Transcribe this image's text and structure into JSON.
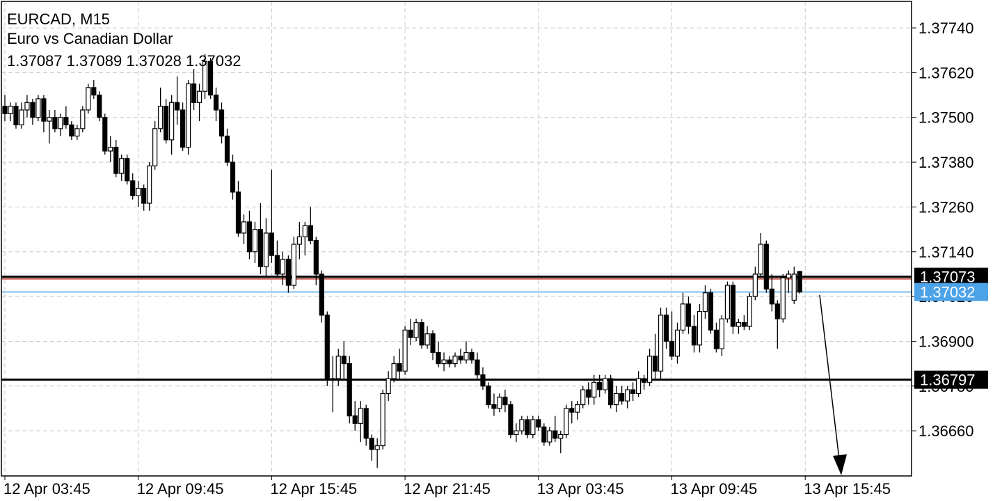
{
  "chart_data": {
    "type": "candlestick",
    "title": "EURCAD, M15",
    "subtitle": "Euro vs Canadian Dollar",
    "ohlc": [
      [
        1.3753,
        1.3756,
        1.3749,
        1.3751
      ],
      [
        1.3751,
        1.3754,
        1.3749,
        1.3753
      ],
      [
        1.3753,
        1.3754,
        1.3747,
        1.3748
      ],
      [
        1.3748,
        1.3754,
        1.3747,
        1.3752
      ],
      [
        1.3752,
        1.3756,
        1.375,
        1.3754
      ],
      [
        1.3754,
        1.3755,
        1.3748,
        1.375
      ],
      [
        1.375,
        1.3756,
        1.3749,
        1.3755
      ],
      [
        1.3755,
        1.3756,
        1.3746,
        1.3749
      ],
      [
        1.3749,
        1.3752,
        1.3743,
        1.375
      ],
      [
        1.375,
        1.3752,
        1.3746,
        1.3747
      ],
      [
        1.3747,
        1.3751,
        1.3745,
        1.375
      ],
      [
        1.375,
        1.3753,
        1.3747,
        1.3748
      ],
      [
        1.3748,
        1.3749,
        1.3744,
        1.3745
      ],
      [
        1.3745,
        1.3748,
        1.3744,
        1.3747
      ],
      [
        1.3747,
        1.3753,
        1.3746,
        1.3752
      ],
      [
        1.3752,
        1.3759,
        1.3751,
        1.3758
      ],
      [
        1.3758,
        1.376,
        1.3755,
        1.3756
      ],
      [
        1.3756,
        1.3757,
        1.3749,
        1.375
      ],
      [
        1.375,
        1.3751,
        1.374,
        1.3741
      ],
      [
        1.3741,
        1.3745,
        1.3738,
        1.3742
      ],
      [
        1.3742,
        1.3744,
        1.3734,
        1.3735
      ],
      [
        1.3735,
        1.374,
        1.3733,
        1.3739
      ],
      [
        1.3739,
        1.374,
        1.3732,
        1.3733
      ],
      [
        1.3733,
        1.3735,
        1.3728,
        1.3729
      ],
      [
        1.3729,
        1.3733,
        1.3726,
        1.3731
      ],
      [
        1.3731,
        1.3732,
        1.3725,
        1.3727
      ],
      [
        1.3727,
        1.3738,
        1.3725,
        1.3737
      ],
      [
        1.3737,
        1.3749,
        1.3736,
        1.3747
      ],
      [
        1.3747,
        1.3758,
        1.3746,
        1.3753
      ],
      [
        1.3753,
        1.3755,
        1.3743,
        1.3744
      ],
      [
        1.3744,
        1.3756,
        1.374,
        1.3754
      ],
      [
        1.3754,
        1.3761,
        1.3748,
        1.3752
      ],
      [
        1.3752,
        1.3754,
        1.3741,
        1.3742
      ],
      [
        1.3742,
        1.376,
        1.374,
        1.3759
      ],
      [
        1.3759,
        1.3763,
        1.3752,
        1.3754
      ],
      [
        1.3754,
        1.3759,
        1.3749,
        1.3757
      ],
      [
        1.3757,
        1.3767,
        1.3755,
        1.3765
      ],
      [
        1.3765,
        1.3766,
        1.3755,
        1.3756
      ],
      [
        1.3756,
        1.3758,
        1.3749,
        1.3752
      ],
      [
        1.3752,
        1.3754,
        1.3743,
        1.3745
      ],
      [
        1.3745,
        1.3747,
        1.3737,
        1.3738
      ],
      [
        1.3738,
        1.374,
        1.3728,
        1.373
      ],
      [
        1.373,
        1.3733,
        1.3718,
        1.3719
      ],
      [
        1.3719,
        1.3724,
        1.3716,
        1.3722
      ],
      [
        1.3722,
        1.3725,
        1.3712,
        1.3714
      ],
      [
        1.3714,
        1.3722,
        1.3711,
        1.372
      ],
      [
        1.372,
        1.3727,
        1.3708,
        1.371
      ],
      [
        1.371,
        1.3723,
        1.3707,
        1.3719
      ],
      [
        1.3719,
        1.3736,
        1.3711,
        1.3713
      ],
      [
        1.3713,
        1.3717,
        1.3707,
        1.3708
      ],
      [
        1.3708,
        1.3714,
        1.3705,
        1.3712
      ],
      [
        1.3712,
        1.3713,
        1.3703,
        1.3705
      ],
      [
        1.3705,
        1.3718,
        1.3704,
        1.3716
      ],
      [
        1.3716,
        1.3722,
        1.3712,
        1.3718
      ],
      [
        1.3718,
        1.3722,
        1.3713,
        1.3721
      ],
      [
        1.3721,
        1.3726,
        1.3716,
        1.3717
      ],
      [
        1.3717,
        1.3718,
        1.3705,
        1.3708
      ],
      [
        1.3708,
        1.3709,
        1.3695,
        1.3697
      ],
      [
        1.3697,
        1.3698,
        1.3678,
        1.368
      ],
      [
        1.368,
        1.3686,
        1.3671,
        1.368
      ],
      [
        1.368,
        1.3688,
        1.3678,
        1.3686
      ],
      [
        1.3686,
        1.369,
        1.368,
        1.3684
      ],
      [
        1.3684,
        1.3686,
        1.3668,
        1.367
      ],
      [
        1.367,
        1.3674,
        1.3666,
        1.3668
      ],
      [
        1.3668,
        1.3674,
        1.3663,
        1.3672
      ],
      [
        1.3672,
        1.3673,
        1.3662,
        1.3664
      ],
      [
        1.3664,
        1.3665,
        1.3658,
        1.3661
      ],
      [
        1.3661,
        1.3664,
        1.3656,
        1.3662
      ],
      [
        1.3662,
        1.3677,
        1.3661,
        1.3676
      ],
      [
        1.3676,
        1.3682,
        1.3674,
        1.368
      ],
      [
        1.368,
        1.3686,
        1.3679,
        1.3684
      ],
      [
        1.3684,
        1.3688,
        1.368,
        1.3682
      ],
      [
        1.3682,
        1.3694,
        1.3681,
        1.3693
      ],
      [
        1.3693,
        1.3696,
        1.3689,
        1.3691
      ],
      [
        1.3691,
        1.3696,
        1.369,
        1.3695
      ],
      [
        1.3695,
        1.3696,
        1.3688,
        1.3689
      ],
      [
        1.3689,
        1.3694,
        1.3688,
        1.3692
      ],
      [
        1.3692,
        1.3693,
        1.3685,
        1.3687
      ],
      [
        1.3687,
        1.369,
        1.3683,
        1.3684
      ],
      [
        1.3684,
        1.3687,
        1.3682,
        1.3685
      ],
      [
        1.3685,
        1.3686,
        1.3683,
        1.3684
      ],
      [
        1.3684,
        1.3687,
        1.3683,
        1.3686
      ],
      [
        1.3686,
        1.3688,
        1.3684,
        1.3685
      ],
      [
        1.3685,
        1.369,
        1.3684,
        1.3687
      ],
      [
        1.3687,
        1.3688,
        1.3684,
        1.3685
      ],
      [
        1.3685,
        1.3687,
        1.368,
        1.3681
      ],
      [
        1.3681,
        1.3683,
        1.3677,
        1.3678
      ],
      [
        1.3678,
        1.3679,
        1.3672,
        1.3673
      ],
      [
        1.3673,
        1.3676,
        1.367,
        1.3672
      ],
      [
        1.3672,
        1.3676,
        1.3671,
        1.3675
      ],
      [
        1.3675,
        1.3677,
        1.3671,
        1.3673
      ],
      [
        1.3673,
        1.3674,
        1.3664,
        1.3665
      ],
      [
        1.3665,
        1.3668,
        1.3663,
        1.3666
      ],
      [
        1.3666,
        1.367,
        1.3665,
        1.3669
      ],
      [
        1.3669,
        1.367,
        1.3664,
        1.3665
      ],
      [
        1.3665,
        1.367,
        1.3664,
        1.3669
      ],
      [
        1.3669,
        1.367,
        1.3666,
        1.3667
      ],
      [
        1.3667,
        1.3668,
        1.3662,
        1.3663
      ],
      [
        1.3663,
        1.3667,
        1.3662,
        1.3666
      ],
      [
        1.3666,
        1.367,
        1.3663,
        1.3664
      ],
      [
        1.3664,
        1.3666,
        1.366,
        1.3665
      ],
      [
        1.3665,
        1.3673,
        1.3664,
        1.3672
      ],
      [
        1.3672,
        1.3674,
        1.3668,
        1.3671
      ],
      [
        1.3671,
        1.3674,
        1.3669,
        1.3673
      ],
      [
        1.3673,
        1.3678,
        1.3672,
        1.3677
      ],
      [
        1.3677,
        1.3679,
        1.3673,
        1.3675
      ],
      [
        1.3675,
        1.3681,
        1.3673,
        1.3679
      ],
      [
        1.3679,
        1.3681,
        1.3675,
        1.3677
      ],
      [
        1.3677,
        1.3681,
        1.3676,
        1.368
      ],
      [
        1.368,
        1.3681,
        1.3672,
        1.3673
      ],
      [
        1.3673,
        1.3678,
        1.3671,
        1.3676
      ],
      [
        1.3676,
        1.3678,
        1.3673,
        1.3674
      ],
      [
        1.3674,
        1.3678,
        1.3672,
        1.3677
      ],
      [
        1.3677,
        1.3679,
        1.3674,
        1.3676
      ],
      [
        1.3676,
        1.3682,
        1.3675,
        1.368
      ],
      [
        1.368,
        1.3681,
        1.3677,
        1.3679
      ],
      [
        1.3679,
        1.3688,
        1.3678,
        1.3686
      ],
      [
        1.3686,
        1.3692,
        1.368,
        1.3682
      ],
      [
        1.3682,
        1.3699,
        1.368,
        1.3697
      ],
      [
        1.3697,
        1.3699,
        1.3688,
        1.369
      ],
      [
        1.369,
        1.3698,
        1.3685,
        1.3686
      ],
      [
        1.3686,
        1.3695,
        1.3684,
        1.3693
      ],
      [
        1.3693,
        1.3703,
        1.3692,
        1.37
      ],
      [
        1.37,
        1.3702,
        1.3692,
        1.3694
      ],
      [
        1.3694,
        1.3697,
        1.3687,
        1.3689
      ],
      [
        1.3689,
        1.37,
        1.3687,
        1.3698
      ],
      [
        1.3698,
        1.3705,
        1.3696,
        1.3703
      ],
      [
        1.3703,
        1.3704,
        1.3692,
        1.3693
      ],
      [
        1.3693,
        1.3695,
        1.3687,
        1.3688
      ],
      [
        1.3688,
        1.3697,
        1.3686,
        1.3696
      ],
      [
        1.3696,
        1.3706,
        1.3695,
        1.3705
      ],
      [
        1.3705,
        1.3706,
        1.3692,
        1.3694
      ],
      [
        1.3694,
        1.3696,
        1.3692,
        1.3695
      ],
      [
        1.3695,
        1.3697,
        1.3693,
        1.3694
      ],
      [
        1.3694,
        1.3703,
        1.3693,
        1.3702
      ],
      [
        1.3702,
        1.371,
        1.3701,
        1.3708
      ],
      [
        1.3708,
        1.3719,
        1.3707,
        1.3716
      ],
      [
        1.3716,
        1.3717,
        1.3703,
        1.3704
      ],
      [
        1.3704,
        1.3708,
        1.3698,
        1.37
      ],
      [
        1.37,
        1.3701,
        1.3688,
        1.3696
      ],
      [
        1.3696,
        1.3708,
        1.3695,
        1.3707
      ],
      [
        1.3707,
        1.3709,
        1.3703,
        1.3708
      ],
      [
        1.3701,
        1.371,
        1.37,
        1.3708
      ],
      [
        1.37087,
        1.37089,
        1.37028,
        1.37032
      ]
    ],
    "up_color": "#ffffff",
    "down_color": "#000000",
    "levels": [
      {
        "value": 1.37073,
        "color": "#000000",
        "tag": true
      },
      {
        "value": 1.37067,
        "color": "#c0392b",
        "tag": false
      },
      {
        "value": 1.37032,
        "color": "#4da3e8",
        "tag": true
      },
      {
        "value": 1.36797,
        "color": "#000000",
        "tag": true
      }
    ],
    "xlim": [
      -0.625,
      163.125
    ],
    "xticks": [
      {
        "value": 0,
        "label": "12 Apr 03:45"
      },
      {
        "value": 24,
        "label": "12 Apr 09:45"
      },
      {
        "value": 48,
        "label": "12 Apr 15:45"
      },
      {
        "value": 72,
        "label": "12 Apr 21:45"
      },
      {
        "value": 96,
        "label": "13 Apr 03:45"
      },
      {
        "value": 120,
        "label": "13 Apr 09:45"
      },
      {
        "value": 144,
        "label": "13 Apr 15:45"
      }
    ],
    "ylim": [
      1.36539,
      1.37811
    ],
    "yticks": [
      {
        "value": 1.3774,
        "label": "1.37740"
      },
      {
        "value": 1.3762,
        "label": "1.37620"
      },
      {
        "value": 1.375,
        "label": "1.37500"
      },
      {
        "value": 1.3738,
        "label": "1.37380"
      },
      {
        "value": 1.3726,
        "label": "1.37260"
      },
      {
        "value": 1.3714,
        "label": "1.37140"
      },
      {
        "value": 1.3702,
        "label": "1.37020"
      },
      {
        "value": 1.369,
        "label": "1.36900"
      },
      {
        "value": 1.3678,
        "label": "1.36780"
      },
      {
        "value": 1.3666,
        "label": "1.36660"
      }
    ],
    "grid": true
  }
}
